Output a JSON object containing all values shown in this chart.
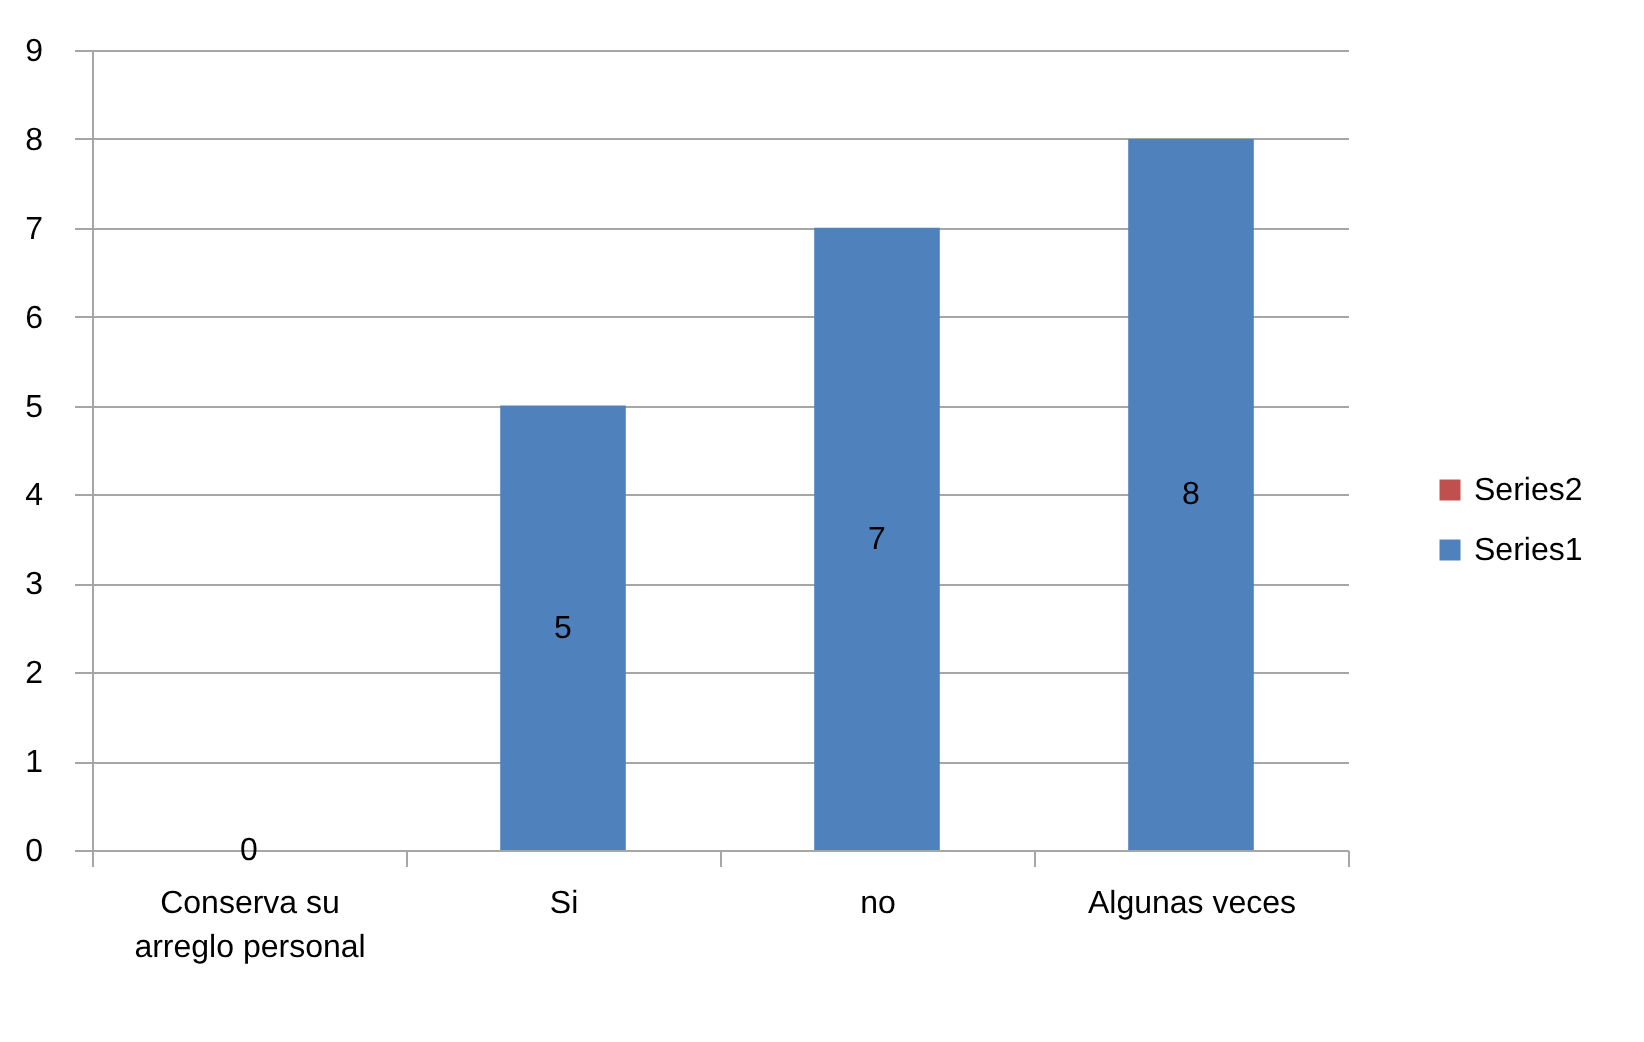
{
  "chart_data": {
    "type": "bar",
    "categories": [
      "Conserva su arreglo personal",
      "Si",
      "no",
      "Algunas veces"
    ],
    "series": [
      {
        "name": "Series1",
        "color": "#4f81bd",
        "values": [
          0,
          5,
          7,
          8
        ]
      },
      {
        "name": "Series2",
        "color": "#c0504d",
        "values": [
          null,
          null,
          null,
          null
        ]
      }
    ],
    "stacked": true,
    "ylim": [
      0,
      9
    ],
    "yticks": [
      0,
      1,
      2,
      3,
      4,
      5,
      6,
      7,
      8,
      9
    ],
    "grid": "y",
    "legend": "right",
    "data_labels": true
  }
}
